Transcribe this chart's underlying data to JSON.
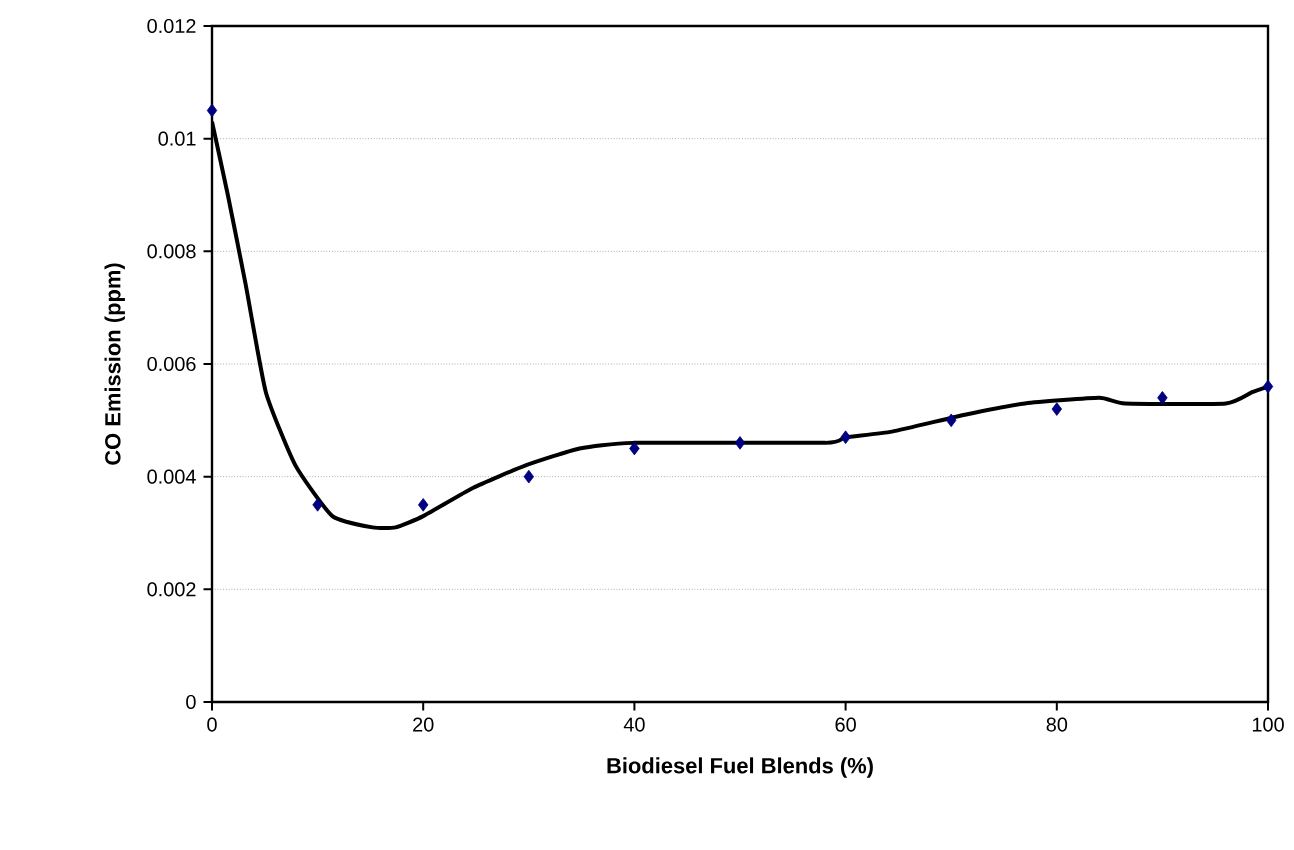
{
  "chart_data": {
    "type": "scatter",
    "xlabel": "Biodiesel Fuel Blends (%)",
    "ylabel": "CO Emission (ppm)",
    "xlim": [
      0,
      100
    ],
    "xticks": [
      0,
      20,
      40,
      60,
      80,
      100
    ],
    "ylim": [
      0,
      0.012
    ],
    "yticks": [
      0,
      0.002,
      0.004,
      0.006,
      0.008,
      0.01,
      0.012
    ],
    "grid": "y",
    "series": [
      {
        "color": "#000080",
        "marker": "diamond",
        "x": [
          0,
          10,
          20,
          30,
          40,
          50,
          60,
          70,
          80,
          90,
          100
        ],
        "values": [
          0.0105,
          0.0035,
          0.0035,
          0.004,
          0.0045,
          0.0046,
          0.0047,
          0.005,
          0.0052,
          0.0054,
          0.0056
        ]
      },
      {
        "type": "line",
        "color": "#000000",
        "marker": "none",
        "line_style": "solid",
        "x": [
          0,
          1.5,
          3.2,
          5.1,
          7.9,
          11.4,
          15.2,
          17.4,
          20,
          24.7,
          29.7,
          34.8,
          39.9,
          58.1,
          60,
          64.4,
          71.3,
          77,
          84,
          86.5,
          96,
          98.5,
          100
        ],
        "values": [
          0.0103,
          0.009,
          0.0074,
          0.0055,
          0.0042,
          0.0033,
          0.0031,
          0.0031,
          0.0033,
          0.0038,
          0.0042,
          0.0045,
          0.0046,
          0.0046,
          0.0047,
          0.0048,
          0.0051,
          0.0053,
          0.0054,
          0.0053,
          0.0053,
          0.0055,
          0.0056
        ]
      }
    ]
  }
}
